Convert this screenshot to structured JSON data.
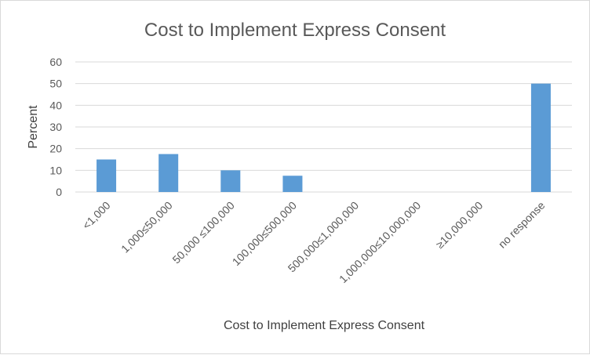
{
  "chart_data": {
    "type": "bar",
    "title": "Cost to Implement Express Consent",
    "xlabel": "Cost to Implement Express Consent",
    "ylabel": "Percent",
    "categories": [
      "<1,000",
      "1,000≤50,000",
      "50,000 ≤100,000",
      "100,000≤500,000",
      "500,000≤1,000,000",
      "1,000,000≤10,000,000",
      "≥10,000,000",
      "no response"
    ],
    "values": [
      15,
      17.5,
      10,
      7.5,
      0,
      0,
      0,
      50
    ],
    "ylim": [
      0,
      60
    ],
    "yticks": [
      0,
      10,
      20,
      30,
      40,
      50,
      60
    ],
    "grid": true,
    "legend": "none",
    "bar_color": "#5b9bd5"
  }
}
